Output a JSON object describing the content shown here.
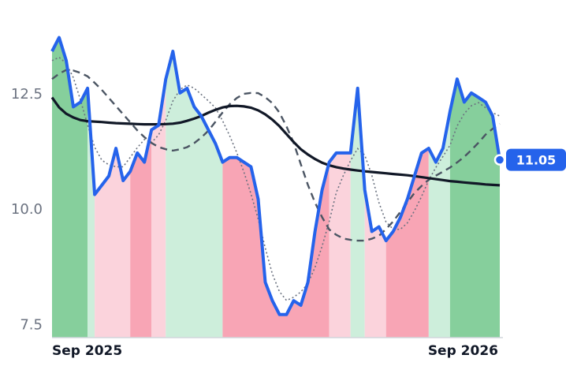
{
  "chart_data": {
    "type": "line",
    "title": "",
    "xlabel": "",
    "ylabel": "",
    "x_ticks": [
      "Sep 2025",
      "Sep 2026"
    ],
    "y_ticks": [
      7.5,
      10.0,
      12.5
    ],
    "ylim": [
      7.2,
      14.0
    ],
    "n_points": 64,
    "last_value_label": "11.05",
    "colors": {
      "price": "#2563eb",
      "sma_long": "#111827",
      "sma_mid": "#4b5563",
      "sma_short": "#6b7280",
      "strong_up": "#86cf9c",
      "weak_up": "#cdeedb",
      "strong_down": "#f8a5b5",
      "weak_down": "#fbd3dc"
    },
    "regime_bands": [
      {
        "start": 0,
        "end": 5,
        "regime": "strong_up"
      },
      {
        "start": 5,
        "end": 6,
        "regime": "weak_up"
      },
      {
        "start": 6,
        "end": 11,
        "regime": "weak_down"
      },
      {
        "start": 11,
        "end": 14,
        "regime": "strong_down"
      },
      {
        "start": 14,
        "end": 16,
        "regime": "weak_down"
      },
      {
        "start": 16,
        "end": 24,
        "regime": "weak_up"
      },
      {
        "start": 24,
        "end": 39,
        "regime": "strong_down"
      },
      {
        "start": 39,
        "end": 42,
        "regime": "weak_down"
      },
      {
        "start": 42,
        "end": 44,
        "regime": "weak_up"
      },
      {
        "start": 44,
        "end": 47,
        "regime": "weak_down"
      },
      {
        "start": 47,
        "end": 53,
        "regime": "strong_down"
      },
      {
        "start": 53,
        "end": 56,
        "regime": "weak_up"
      },
      {
        "start": 56,
        "end": 64,
        "regime": "strong_up"
      }
    ],
    "series": [
      {
        "key": "price",
        "values": [
          13.4,
          13.7,
          13.2,
          12.2,
          12.3,
          12.6,
          10.3,
          10.5,
          10.7,
          11.3,
          10.6,
          10.8,
          11.2,
          11.0,
          11.7,
          11.8,
          12.8,
          13.4,
          12.5,
          12.6,
          12.2,
          12.0,
          11.7,
          11.4,
          11.0,
          11.1,
          11.1,
          11.0,
          10.9,
          10.2,
          8.4,
          8.0,
          7.7,
          7.7,
          8.0,
          7.9,
          8.4,
          9.5,
          10.4,
          11.0,
          11.2,
          11.2,
          11.2,
          12.6,
          10.4,
          9.5,
          9.6,
          9.3,
          9.5,
          9.8,
          10.2,
          10.7,
          11.2,
          11.3,
          11.0,
          11.3,
          12.1,
          12.8,
          12.3,
          12.5,
          12.4,
          12.3,
          12.0,
          11.05
        ]
      },
      {
        "key": "sma_long",
        "values": [
          12.4,
          12.1,
          11.98,
          11.9,
          11.88,
          11.87,
          11.85,
          11.84,
          11.83,
          11.82,
          11.82,
          11.82,
          11.83,
          11.86,
          11.92,
          12.0,
          12.1,
          12.18,
          12.22,
          12.22,
          12.18,
          12.1,
          11.95,
          11.75,
          11.5,
          11.28,
          11.12,
          11.0,
          10.92,
          10.87,
          10.84,
          10.81,
          10.79,
          10.77,
          10.75,
          10.73,
          10.71,
          10.68,
          10.65,
          10.62,
          10.59,
          10.57,
          10.55,
          10.53,
          10.51,
          10.5
        ]
      },
      {
        "key": "sma_mid",
        "values": [
          12.8,
          13.0,
          12.98,
          12.85,
          12.6,
          12.3,
          12.0,
          11.7,
          11.45,
          11.3,
          11.25,
          11.3,
          11.45,
          11.7,
          12.05,
          12.35,
          12.5,
          12.5,
          12.35,
          12.0,
          11.4,
          10.6,
          9.95,
          9.5,
          9.35,
          9.3,
          9.3,
          9.4,
          9.65,
          10.0,
          10.35,
          10.6,
          10.75,
          10.9,
          11.1,
          11.35,
          11.65,
          11.83
        ]
      },
      {
        "key": "sma_short",
        "values": [
          13.2,
          13.3,
          12.9,
          12.2,
          11.4,
          11.0,
          10.9,
          10.9,
          11.2,
          11.5,
          11.4,
          11.8,
          12.4,
          12.7,
          12.6,
          12.4,
          12.2,
          11.8,
          11.3,
          10.7,
          10.0,
          9.1,
          8.3,
          8.0,
          8.1,
          8.3,
          8.8,
          9.5,
          10.4,
          10.9,
          11.3,
          11.1,
          10.2,
          9.6,
          9.5,
          9.7,
          10.1,
          10.6,
          11.0,
          11.3,
          11.9,
          12.2,
          12.3,
          12.1,
          12.0
        ]
      }
    ],
    "grid": false,
    "legend": "none"
  }
}
